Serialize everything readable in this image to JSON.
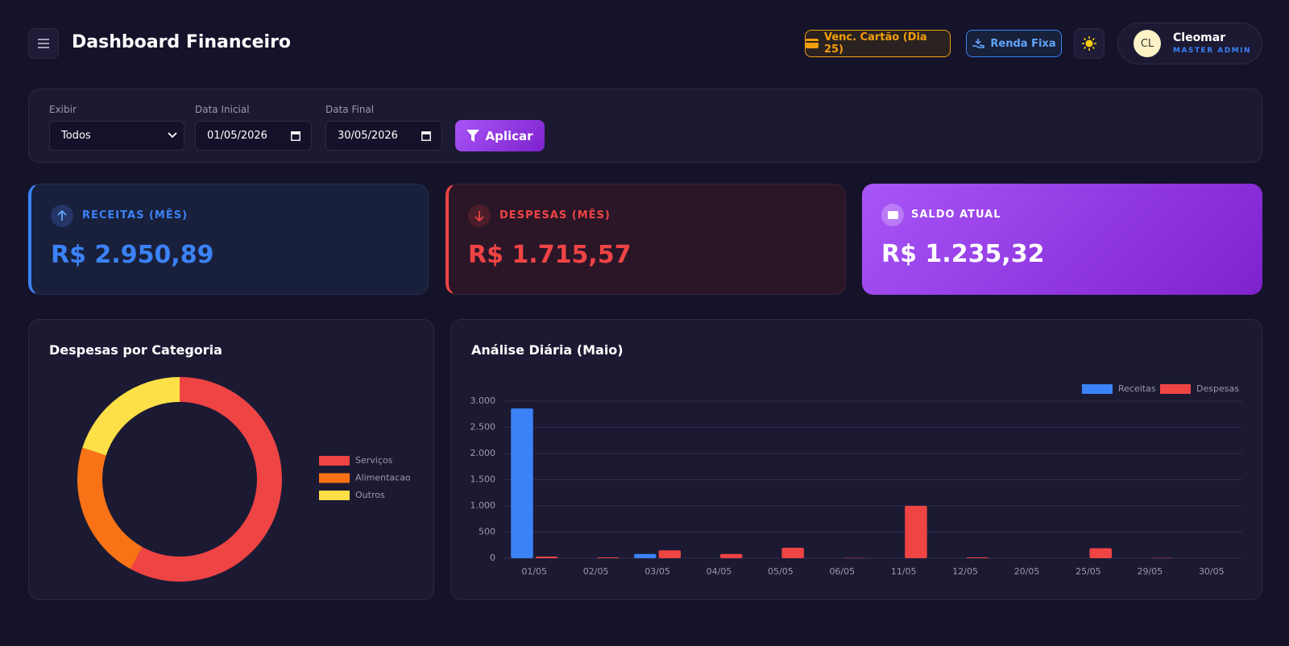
{
  "header": {
    "title": "Dashboard Financeiro",
    "buttons": [
      "Venc. Cartão (Dia 25)",
      "Renda Fixa"
    ],
    "user": {
      "initials": "CL",
      "name": "Cleomar",
      "role": "MASTER ADMIN"
    }
  },
  "filters": {
    "fields": [
      {
        "label": "Exibir",
        "value": "Todos"
      },
      {
        "label": "Data Inicial",
        "value": "01/05/2026"
      },
      {
        "label": "Data Final",
        "value": "30/05/2026"
      }
    ],
    "apply": "Aplicar"
  },
  "cards": [
    {
      "label": "RECEITAS (MÊS)",
      "value": "R$ 2.950,89"
    },
    {
      "label": "DESPESAS (MÊS)",
      "value": "R$ 1.715,57"
    },
    {
      "label": "SALDO ATUAL",
      "value": "R$ 1.235,32"
    }
  ],
  "chart_data": [
    {
      "type": "pie",
      "title": "Despesas por Categoria",
      "donut": true,
      "legend": "right",
      "categories": [
        "Serviços",
        "Alimentacao",
        "Outros"
      ],
      "values": [
        58,
        22,
        20
      ],
      "colors": [
        "#ef4444",
        "#f97316",
        "#fde047"
      ]
    },
    {
      "type": "bar",
      "title": "Análise Diária (Maio)",
      "legend": "top-right",
      "grid": true,
      "categories": [
        "01/05",
        "02/05",
        "03/05",
        "04/05",
        "05/05",
        "06/05",
        "11/05",
        "12/05",
        "20/05",
        "25/05",
        "29/05",
        "30/05"
      ],
      "series": [
        {
          "name": "Receitas",
          "color": "#3b82f6",
          "values": [
            2860,
            0,
            80,
            0,
            0,
            0,
            0,
            0,
            0,
            0,
            0,
            0
          ]
        },
        {
          "name": "Despesas",
          "color": "#ef4444",
          "values": [
            30,
            15,
            150,
            80,
            200,
            5,
            1000,
            15,
            0,
            190,
            5,
            0
          ]
        }
      ],
      "ylim": [
        0,
        3000
      ],
      "yticks": [
        0,
        500,
        {
          "value": 1000,
          "label": "1.000"
        },
        {
          "value": 1500,
          "label": "1.500"
        },
        {
          "value": 2000,
          "label": "2.000"
        },
        {
          "value": 2500,
          "label": "2.500"
        },
        {
          "value": 3000,
          "label": "3.000"
        }
      ]
    }
  ]
}
